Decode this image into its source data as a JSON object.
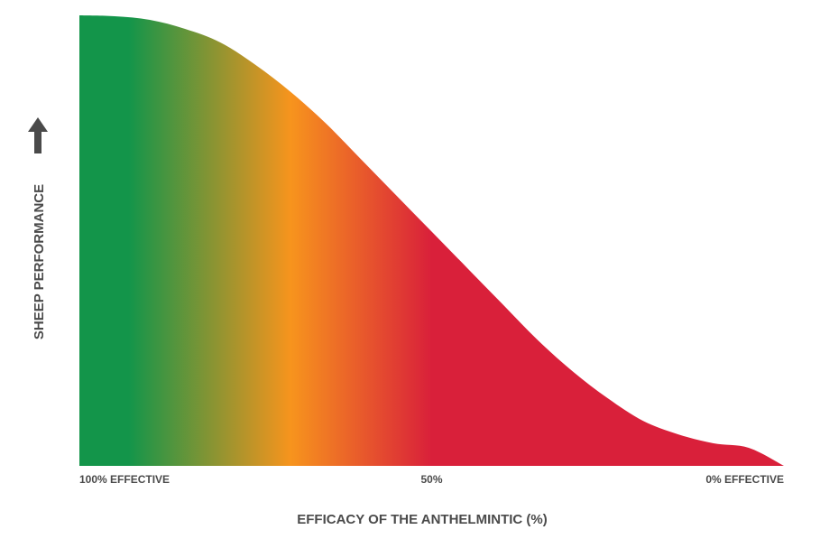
{
  "chart_data": {
    "type": "area",
    "title": "",
    "xlabel": "EFFICACY OF THE ANTHELMINTIC (%)",
    "ylabel": "SHEEP PERFORMANCE",
    "x_reversed": true,
    "xlim": [
      0,
      100
    ],
    "ylim": [
      0,
      100
    ],
    "x_ticks": [
      {
        "value": 100,
        "label": "100% EFFECTIVE"
      },
      {
        "value": 50,
        "label": "50%"
      },
      {
        "value": 0,
        "label": "0% EFFECTIVE"
      }
    ],
    "x": [
      100,
      95,
      90,
      85,
      80,
      75,
      70,
      65,
      60,
      55,
      50,
      45,
      40,
      35,
      30,
      25,
      20,
      15,
      10,
      5,
      0
    ],
    "y": [
      100,
      99.8,
      99,
      97,
      94,
      89,
      83,
      76,
      68,
      60,
      52,
      44,
      36,
      28,
      21,
      15,
      10,
      7,
      5,
      4,
      0
    ],
    "gradient_colors": [
      {
        "x": 100,
        "color": "#13954a"
      },
      {
        "x": 93,
        "color": "#13954a"
      },
      {
        "x": 70,
        "color": "#f7941d"
      },
      {
        "x": 50,
        "color": "#d9203a"
      },
      {
        "x": 0,
        "color": "#d9203a"
      }
    ],
    "y_axis_arrow": "up-arrow-icon",
    "grid": false,
    "legend": "none"
  }
}
